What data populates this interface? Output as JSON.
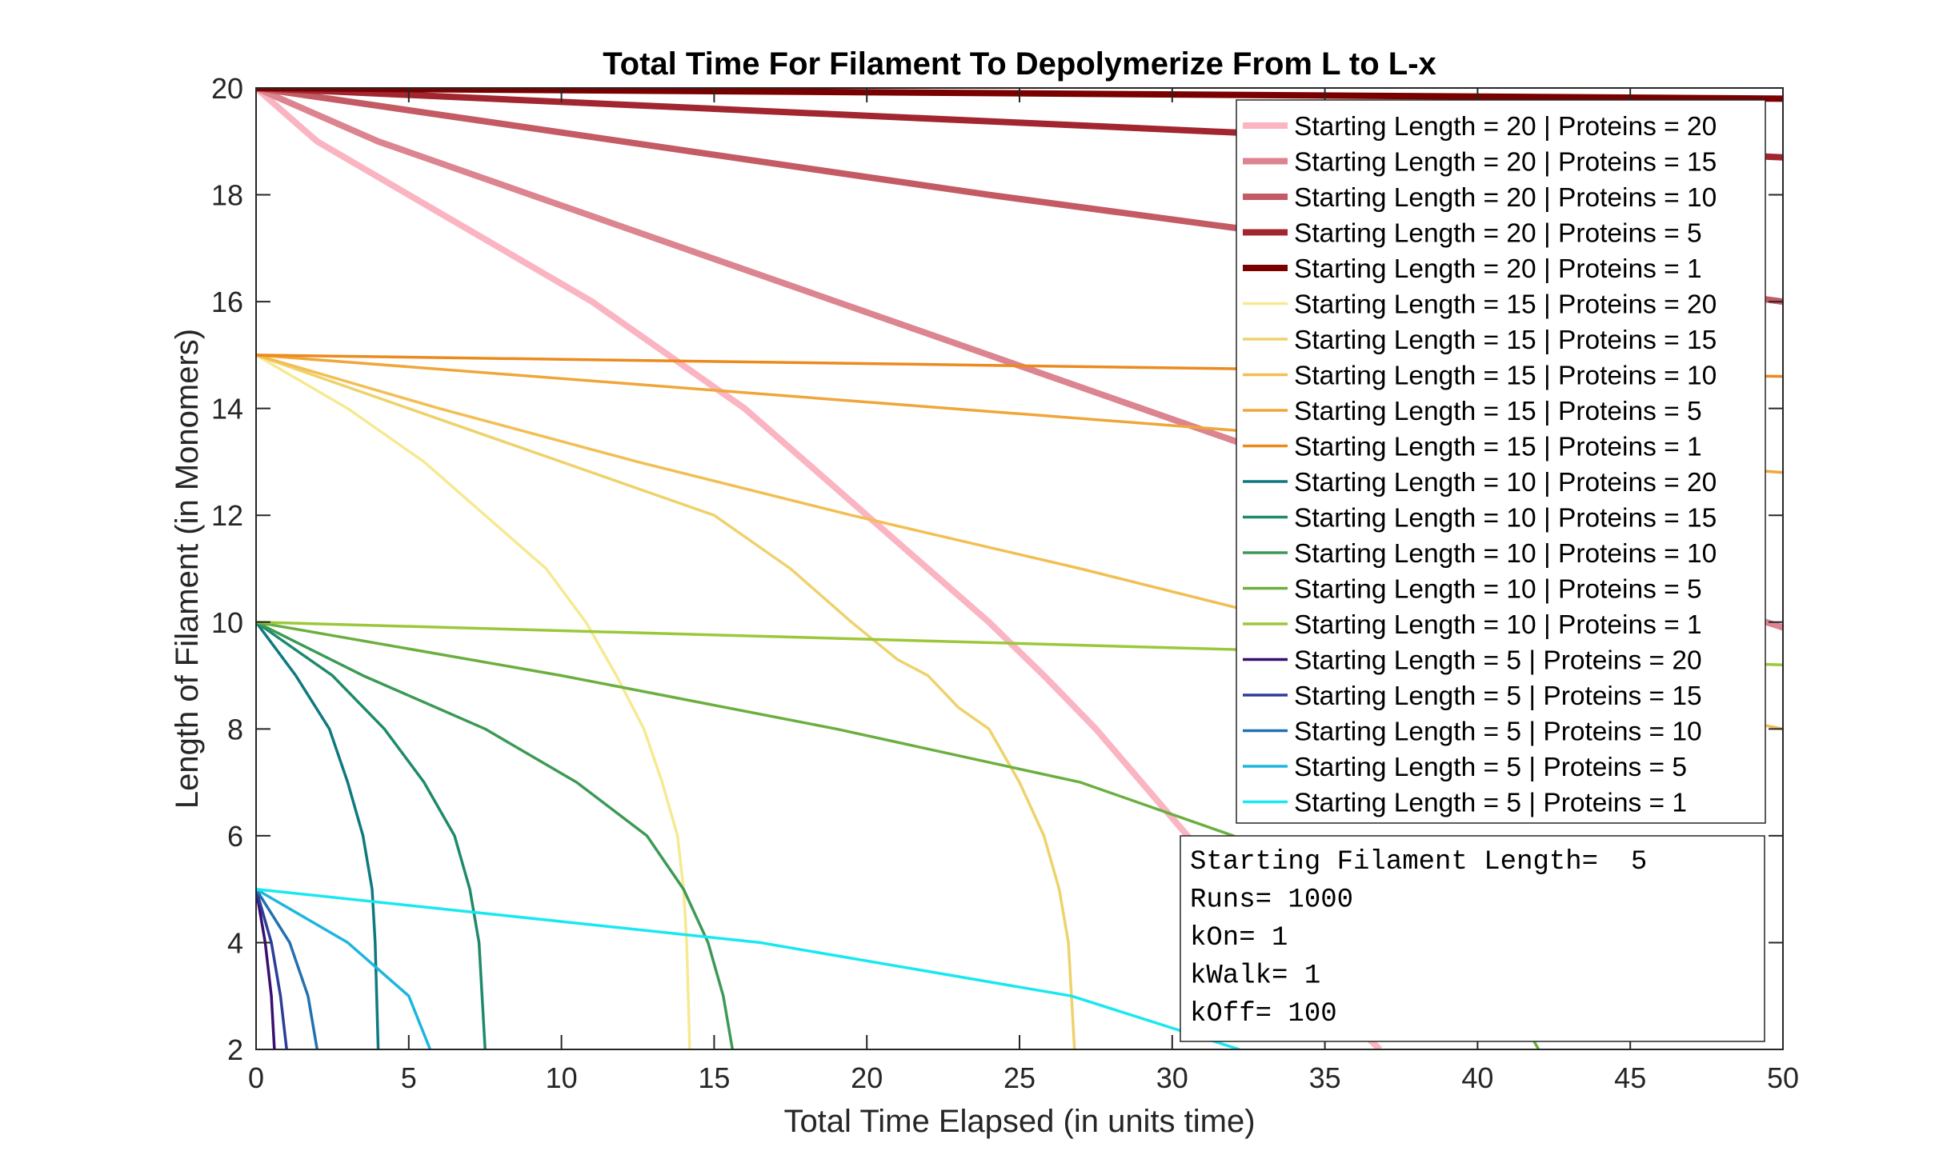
{
  "chart_data": {
    "type": "line",
    "title": "Total Time For Filament To Depolymerize From L to L-x",
    "xlabel": "Total Time Elapsed (in units time)",
    "ylabel": "Length of Filament (in Monomers)",
    "xlim": [
      0,
      50
    ],
    "ylim": [
      2,
      20
    ],
    "xticks": [
      "0",
      "5",
      "10",
      "15",
      "20",
      "25",
      "30",
      "35",
      "40",
      "45",
      "50"
    ],
    "yticks": [
      "2",
      "4",
      "6",
      "8",
      "10",
      "12",
      "14",
      "16",
      "18",
      "20"
    ],
    "grid": false,
    "legend_position": "top-right",
    "series": [
      {
        "name": "Starting Length = 20 | Proteins = 20",
        "color": "#FBB4C1",
        "width": "thick",
        "points": [
          [
            0,
            20
          ],
          [
            2,
            19
          ],
          [
            5,
            18
          ],
          [
            8,
            17
          ],
          [
            11,
            16
          ],
          [
            13.5,
            15
          ],
          [
            16,
            14
          ],
          [
            18,
            13
          ],
          [
            20,
            12
          ],
          [
            22,
            11
          ],
          [
            24,
            10
          ],
          [
            25.8,
            9
          ],
          [
            27.5,
            8
          ],
          [
            29,
            7
          ],
          [
            30.5,
            6
          ],
          [
            32,
            5
          ],
          [
            33.5,
            4
          ],
          [
            35,
            3
          ],
          [
            36.8,
            2
          ]
        ]
      },
      {
        "name": "Starting Length = 20 | Proteins = 15",
        "color": "#DC848F",
        "width": "thick",
        "points": [
          [
            0,
            20
          ],
          [
            4,
            19
          ],
          [
            9,
            18
          ],
          [
            14,
            17
          ],
          [
            19,
            16
          ],
          [
            24,
            15
          ],
          [
            29,
            14
          ],
          [
            34,
            13
          ],
          [
            39,
            12
          ],
          [
            44,
            11
          ],
          [
            50,
            9.9
          ]
        ]
      },
      {
        "name": "Starting Length = 20 | Proteins = 10",
        "color": "#C35A64",
        "width": "thick",
        "points": [
          [
            0,
            20
          ],
          [
            12,
            19
          ],
          [
            24,
            18
          ],
          [
            37,
            17
          ],
          [
            50,
            16
          ]
        ]
      },
      {
        "name": "Starting Length = 20 | Proteins = 5",
        "color": "#A1262F",
        "width": "thick",
        "points": [
          [
            0,
            20
          ],
          [
            25,
            19.35
          ],
          [
            50,
            18.7
          ]
        ]
      },
      {
        "name": "Starting Length = 20 | Proteins = 1",
        "color": "#7A0000",
        "width": "thick",
        "points": [
          [
            0,
            20
          ],
          [
            50,
            19.8
          ]
        ]
      },
      {
        "name": "Starting Length = 15 | Proteins = 20",
        "color": "#F7E991",
        "width": "thin",
        "points": [
          [
            0,
            15
          ],
          [
            3,
            14
          ],
          [
            5.5,
            13
          ],
          [
            7.5,
            12
          ],
          [
            9.5,
            11
          ],
          [
            10.8,
            10
          ],
          [
            11.8,
            9
          ],
          [
            12.7,
            8
          ],
          [
            13.3,
            7
          ],
          [
            13.8,
            6
          ],
          [
            14,
            5
          ],
          [
            14.1,
            4
          ],
          [
            14.2,
            2
          ]
        ]
      },
      {
        "name": "Starting Length = 15 | Proteins = 15",
        "color": "#EED26B",
        "width": "thin",
        "points": [
          [
            0,
            15
          ],
          [
            5,
            14
          ],
          [
            10,
            13
          ],
          [
            15,
            12
          ],
          [
            17.5,
            11
          ],
          [
            19.5,
            10
          ],
          [
            21,
            9.3
          ],
          [
            22,
            9
          ],
          [
            23,
            8.4
          ],
          [
            24,
            8
          ],
          [
            25,
            7
          ],
          [
            25.8,
            6
          ],
          [
            26.3,
            5
          ],
          [
            26.6,
            4
          ],
          [
            26.8,
            2
          ]
        ]
      },
      {
        "name": "Starting Length = 15 | Proteins = 10",
        "color": "#F3BE53",
        "width": "thin",
        "points": [
          [
            0,
            15
          ],
          [
            6,
            14
          ],
          [
            12.5,
            13
          ],
          [
            19.5,
            12
          ],
          [
            27,
            11
          ],
          [
            34,
            10
          ],
          [
            41,
            9
          ],
          [
            50,
            8
          ]
        ]
      },
      {
        "name": "Starting Length = 15 | Proteins = 5",
        "color": "#EFA63A",
        "width": "thin",
        "points": [
          [
            0,
            15
          ],
          [
            25,
            13.9
          ],
          [
            50,
            12.8
          ]
        ]
      },
      {
        "name": "Starting Length = 15 | Proteins = 1",
        "color": "#EB8A1D",
        "width": "thin",
        "points": [
          [
            0,
            15
          ],
          [
            50,
            14.6
          ]
        ]
      },
      {
        "name": "Starting Length = 10 | Proteins = 20",
        "color": "#0E7A80",
        "width": "thin",
        "points": [
          [
            0,
            10
          ],
          [
            1.3,
            9
          ],
          [
            2.4,
            8
          ],
          [
            3,
            7
          ],
          [
            3.5,
            6
          ],
          [
            3.8,
            5
          ],
          [
            3.9,
            4
          ],
          [
            4,
            2
          ]
        ]
      },
      {
        "name": "Starting Length = 10 | Proteins = 15",
        "color": "#1E8A6C",
        "width": "thin",
        "points": [
          [
            0,
            10
          ],
          [
            2.5,
            9
          ],
          [
            4.2,
            8
          ],
          [
            5.5,
            7
          ],
          [
            6.5,
            6
          ],
          [
            7,
            5
          ],
          [
            7.3,
            4
          ],
          [
            7.5,
            2
          ]
        ]
      },
      {
        "name": "Starting Length = 10 | Proteins = 10",
        "color": "#3C9A55",
        "width": "thin",
        "points": [
          [
            0,
            10
          ],
          [
            3.5,
            9
          ],
          [
            7.5,
            8
          ],
          [
            10.5,
            7
          ],
          [
            12.8,
            6
          ],
          [
            14,
            5
          ],
          [
            14.8,
            4
          ],
          [
            15.3,
            3
          ],
          [
            15.6,
            2
          ]
        ]
      },
      {
        "name": "Starting Length = 10 | Proteins = 5",
        "color": "#6BAF40",
        "width": "thin",
        "points": [
          [
            0,
            10
          ],
          [
            10,
            9
          ],
          [
            19,
            8
          ],
          [
            27,
            7
          ],
          [
            32,
            6
          ],
          [
            36,
            5
          ],
          [
            39.5,
            4
          ],
          [
            41,
            3
          ],
          [
            42,
            2
          ]
        ]
      },
      {
        "name": "Starting Length = 10 | Proteins = 1",
        "color": "#9BC83A",
        "width": "thin",
        "points": [
          [
            0,
            10
          ],
          [
            50,
            9.2
          ]
        ]
      },
      {
        "name": "Starting Length = 5 | Proteins = 20",
        "color": "#3A0F70",
        "width": "thin",
        "points": [
          [
            0,
            5
          ],
          [
            0.3,
            4
          ],
          [
            0.5,
            3
          ],
          [
            0.6,
            2
          ]
        ]
      },
      {
        "name": "Starting Length = 5 | Proteins = 15",
        "color": "#2C3D9A",
        "width": "thin",
        "points": [
          [
            0,
            5
          ],
          [
            0.5,
            4
          ],
          [
            0.8,
            3
          ],
          [
            1,
            2
          ]
        ]
      },
      {
        "name": "Starting Length = 5 | Proteins = 10",
        "color": "#2271B2",
        "width": "thin",
        "points": [
          [
            0,
            5
          ],
          [
            1.1,
            4
          ],
          [
            1.7,
            3
          ],
          [
            2,
            2
          ]
        ]
      },
      {
        "name": "Starting Length = 5 | Proteins = 5",
        "color": "#1DB6DF",
        "width": "thin",
        "points": [
          [
            0,
            5
          ],
          [
            3,
            4
          ],
          [
            5,
            3
          ],
          [
            5.7,
            2
          ]
        ]
      },
      {
        "name": "Starting Length = 5 | Proteins = 1",
        "color": "#19E8F0",
        "width": "thin",
        "points": [
          [
            0,
            5
          ],
          [
            16.5,
            4
          ],
          [
            26.7,
            3
          ],
          [
            32.2,
            2
          ]
        ]
      }
    ],
    "annotation": [
      "Starting Filament Length=  5",
      "Runs= 1000",
      "kOn= 1",
      "kWalk= 1",
      "kOff= 100"
    ]
  }
}
